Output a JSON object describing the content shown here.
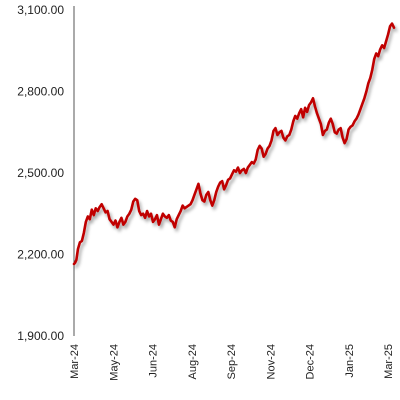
{
  "chart_data": {
    "type": "line",
    "title": "",
    "xlabel": "",
    "ylabel": "",
    "ylim": [
      1900,
      3100
    ],
    "y_ticks": [
      1900,
      2200,
      2500,
      2800,
      3100
    ],
    "y_tick_labels": [
      "1,900.00",
      "2,200.00",
      "2,500.00",
      "2,800.00",
      "3,100.00"
    ],
    "x_tick_labels": [
      "Mar-24",
      "May-24",
      "Jun-24",
      "Aug-24",
      "Sep-24",
      "Nov-24",
      "Dec-24",
      "Jan-25",
      "Mar-25"
    ],
    "grid": false,
    "legend": "none",
    "series": [
      {
        "color": "#c00000",
        "x": [
          0,
          0.03,
          0.06,
          0.1,
          0.15,
          0.2,
          0.25,
          0.3,
          0.35,
          0.4,
          0.45,
          0.5,
          0.55,
          0.6,
          0.65,
          0.7,
          0.75,
          0.8,
          0.85,
          0.9,
          0.95,
          1.0,
          1.05,
          1.1,
          1.15,
          1.2,
          1.25,
          1.3,
          1.35,
          1.4,
          1.45,
          1.5,
          1.55,
          1.6,
          1.65,
          1.7,
          1.75,
          1.8,
          1.85,
          1.9,
          1.95,
          2.0,
          2.05,
          2.1,
          2.15,
          2.2,
          2.25,
          2.3,
          2.35,
          2.4,
          2.45,
          2.5,
          2.55,
          2.6,
          2.65,
          2.7,
          2.75,
          2.8,
          2.85,
          2.9,
          2.95,
          3.0,
          3.05,
          3.1,
          3.15,
          3.2,
          3.25,
          3.3,
          3.35,
          3.4,
          3.45,
          3.5,
          3.55,
          3.6,
          3.65,
          3.7,
          3.75,
          3.8,
          3.85,
          3.9,
          3.95,
          4.0,
          4.05,
          4.1,
          4.15,
          4.2,
          4.25,
          4.3,
          4.35,
          4.4,
          4.45,
          4.5,
          4.55,
          4.6,
          4.65,
          4.7,
          4.75,
          4.8,
          4.85,
          4.9,
          4.95,
          5.0,
          5.05,
          5.1,
          5.15,
          5.2,
          5.25,
          5.3,
          5.35,
          5.4,
          5.45,
          5.5,
          5.55,
          5.6,
          5.65,
          5.7,
          5.75,
          5.8,
          5.85,
          5.9,
          5.95,
          6.0,
          6.05,
          6.1,
          6.15,
          6.2,
          6.25,
          6.3,
          6.35,
          6.4,
          6.45,
          6.5,
          6.55,
          6.6,
          6.65,
          6.7,
          6.75,
          6.8,
          6.85,
          6.9,
          6.95,
          7.0,
          7.05,
          7.1,
          7.15,
          7.2,
          7.25,
          7.3,
          7.35,
          7.4,
          7.45,
          7.5,
          7.55,
          7.6,
          7.65,
          7.7,
          7.75,
          7.8,
          7.85,
          7.9,
          7.95,
          8.0,
          8.05,
          8.1
        ],
        "y": [
          2165,
          2170,
          2180,
          2220,
          2245,
          2250,
          2280,
          2320,
          2340,
          2330,
          2365,
          2345,
          2370,
          2360,
          2375,
          2385,
          2370,
          2355,
          2360,
          2330,
          2320,
          2310,
          2325,
          2300,
          2320,
          2335,
          2310,
          2320,
          2340,
          2350,
          2365,
          2395,
          2405,
          2400,
          2360,
          2345,
          2350,
          2335,
          2360,
          2340,
          2350,
          2320,
          2330,
          2345,
          2310,
          2330,
          2350,
          2340,
          2335,
          2345,
          2325,
          2320,
          2300,
          2330,
          2345,
          2360,
          2380,
          2370,
          2375,
          2380,
          2385,
          2400,
          2420,
          2440,
          2460,
          2425,
          2400,
          2395,
          2420,
          2430,
          2400,
          2380,
          2400,
          2430,
          2450,
          2465,
          2470,
          2440,
          2455,
          2475,
          2480,
          2495,
          2510,
          2505,
          2520,
          2500,
          2510,
          2515,
          2500,
          2520,
          2530,
          2540,
          2535,
          2550,
          2585,
          2600,
          2590,
          2560,
          2570,
          2590,
          2600,
          2620,
          2655,
          2665,
          2640,
          2650,
          2655,
          2630,
          2620,
          2635,
          2640,
          2660,
          2690,
          2710,
          2700,
          2720,
          2735,
          2705,
          2740,
          2725,
          2750,
          2760,
          2775,
          2745,
          2720,
          2700,
          2680,
          2640,
          2655,
          2660,
          2685,
          2700,
          2680,
          2650,
          2645,
          2660,
          2665,
          2630,
          2610,
          2625,
          2660,
          2670,
          2675,
          2690,
          2700,
          2715,
          2735,
          2755,
          2775,
          2800,
          2830,
          2850,
          2880,
          2920,
          2940,
          2930,
          2955,
          2970,
          2960,
          2985,
          3010,
          3040,
          3050,
          3035
        ]
      }
    ]
  }
}
